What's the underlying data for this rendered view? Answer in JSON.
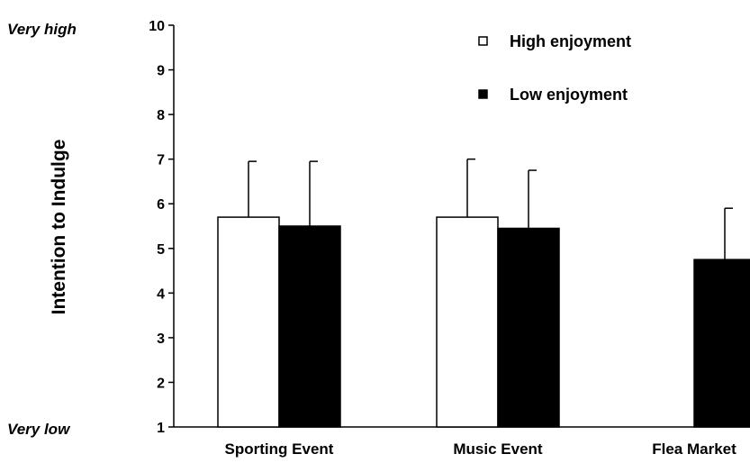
{
  "chart_data": {
    "type": "bar",
    "categories": [
      "Sporting Event",
      "Music Event",
      "Flea Market"
    ],
    "series": [
      {
        "name": "High enjoyment",
        "values": [
          5.7,
          5.7,
          null
        ],
        "errors": [
          1.25,
          1.3,
          null
        ],
        "color": "#ffffff"
      },
      {
        "name": "Low enjoyment",
        "values": [
          5.5,
          5.45,
          4.75
        ],
        "errors": [
          1.45,
          1.3,
          1.15
        ],
        "color": "#000000"
      }
    ],
    "ylabel": "Intention to Indulge",
    "ylim": [
      1,
      10
    ],
    "yticks": [
      1,
      2,
      3,
      4,
      5,
      6,
      7,
      8,
      9,
      10
    ],
    "y_anchor_labels": {
      "high": "Very high",
      "low": "Very low"
    },
    "legend_position": "top-right",
    "grid": false
  }
}
